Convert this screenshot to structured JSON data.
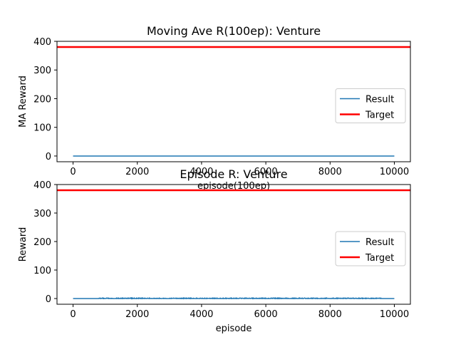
{
  "chart_data": [
    {
      "type": "line",
      "title": "Moving Ave R(100ep): Venture",
      "xlabel": "episode(100ep)",
      "ylabel": "MA Reward",
      "xlim": [
        -500,
        10500
      ],
      "ylim": [
        -20,
        400
      ],
      "xticks": [
        0,
        2000,
        4000,
        6000,
        8000,
        10000
      ],
      "yticks": [
        0,
        100,
        200,
        300,
        400
      ],
      "legend": {
        "placement": "center-right",
        "entries": [
          "Result",
          "Target"
        ]
      },
      "series": [
        {
          "name": "Result",
          "color": "#1f77b4",
          "x": [
            0,
            10000
          ],
          "y": [
            0,
            0
          ]
        },
        {
          "name": "Target",
          "color": "#ff0000",
          "x": [
            -500,
            10500
          ],
          "y": [
            380,
            380
          ]
        }
      ]
    },
    {
      "type": "line",
      "title": "Episode R: Venture",
      "xlabel": "episode",
      "ylabel": "Reward",
      "xlim": [
        -500,
        10500
      ],
      "ylim": [
        -20,
        400
      ],
      "xticks": [
        0,
        2000,
        4000,
        6000,
        8000,
        10000
      ],
      "yticks": [
        0,
        100,
        200,
        300,
        400
      ],
      "legend": {
        "placement": "center-right",
        "entries": [
          "Result",
          "Target"
        ]
      },
      "series": [
        {
          "name": "Result",
          "color": "#1f77b4",
          "x": [
            0,
            10000
          ],
          "y": [
            0,
            0
          ],
          "noise_max": 2
        },
        {
          "name": "Target",
          "color": "#ff0000",
          "x": [
            -500,
            10500
          ],
          "y": [
            380,
            380
          ]
        }
      ]
    }
  ]
}
